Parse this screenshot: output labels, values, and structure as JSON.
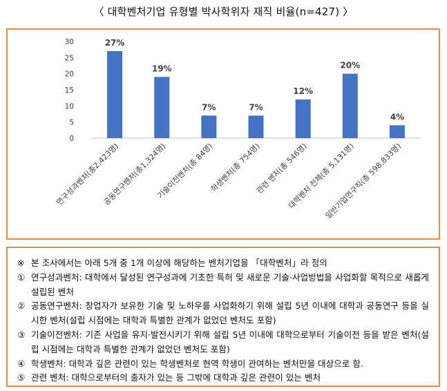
{
  "title": "〈 대학벤처기업 유형별 박사학위자 재직 비율(n=427) 〉",
  "chart_data": {
    "type": "bar",
    "categories": [
      "연구성과벤처(총2,423명)",
      "공동연구벤처(총1,324명)",
      "기술이전벤처(총 84명)",
      "학생벤처(총 754명)",
      "관련 벤처(총 546명)",
      "대학벤처 전체(총 5,131명)",
      "일반기업연구직(총 598,833명)"
    ],
    "values": [
      27,
      19,
      7,
      7,
      12,
      20,
      4
    ],
    "data_labels": [
      "27%",
      "19%",
      "7%",
      "7%",
      "12%",
      "20%",
      "4%"
    ],
    "ylim": [
      0,
      30
    ],
    "yticks": [
      "0",
      "5",
      "10",
      "15",
      "20",
      "25",
      "30"
    ],
    "grid": false,
    "bar_color": "#4472c4"
  },
  "notes": [
    {
      "mark": "※",
      "text": "본 조사에서는 아래 5개 중 1개 이상에 해당하는 벤처기업을 「대학벤처」라 정의"
    },
    {
      "mark": "①",
      "text": "연구성과벤처: 대학에서 달성된 연구성과에 기초한 특허 및 새로운 기술·사업방법을 사업화할 목적으로 새롭게 설립된 벤처"
    },
    {
      "mark": "②",
      "text": "공동연구벤처: 창업자가 보유한 기술 및 노하우를 사업화하기 위해 설립 5년 이내에 대학과 공동연구 등을 실시한 벤처(설립 시점에는 대학과 특별한 관계가 없었던 벤처도 포함)"
    },
    {
      "mark": "③",
      "text": "기술이전벤처: 기존 사업을 유지·발전시키기 위해 설립 5년 이내에 대학으로부터 기술이전 등을 받은 벤처(설립 시점에는 대학과 특별한 관계가 없었던 벤처도 포함)"
    },
    {
      "mark": "④",
      "text": "학생벤처: 대학과 깊은 관련이 있는 학생벤처로 현역 학생이 관여하는 벤처만을 대상으로 함."
    },
    {
      "mark": "⑤",
      "text": "관련 벤처: 대학으로부터의 출자가 있는 등 그밖에 대학과 깊은 관련이 있는 벤처"
    }
  ]
}
